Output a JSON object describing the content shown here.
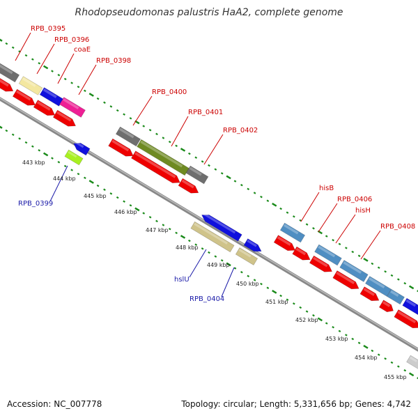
{
  "title": "Rhodopseudomonas palustris HaA2, complete genome",
  "footer": {
    "accession": "Accession: NC_007778",
    "summary": "Topology: circular; Length: 5,331,656 bp; Genes: 4,742"
  },
  "colors": {
    "fwd_label": "#cc0000",
    "rev_label": "#1a1aa8",
    "backbone": "#888888",
    "tick_green": "#1a8a1a",
    "cds_red": "#ee0000",
    "grey": "#6e6e6e",
    "cream": "#f3e7a0",
    "blue": "#1010dd",
    "magenta": "#ee1f95",
    "olive": "#6e8a22",
    "lime": "#a8f020",
    "khaki": "#cfc38a",
    "steel": "#4f8ec2",
    "light_grey": "#cccccc"
  },
  "forward_gene_labels": [
    "RPB_0395",
    "RPB_0396",
    "coaE",
    "RPB_0398",
    "RPB_0400",
    "RPB_0401",
    "RPB_0402",
    "hisB",
    "RPB_0406",
    "hisH",
    "RPB_0408"
  ],
  "reverse_gene_labels": [
    "RPB_0399",
    "hslU",
    "RPB_0404"
  ],
  "kbp_ticks": [
    "443 kbp",
    "444 kbp",
    "445 kbp",
    "446 kbp",
    "447 kbp",
    "448 kbp",
    "449 kbp",
    "450 kbp",
    "451 kbp",
    "452 kbp",
    "453 kbp",
    "454 kbp",
    "455 kbp"
  ]
}
